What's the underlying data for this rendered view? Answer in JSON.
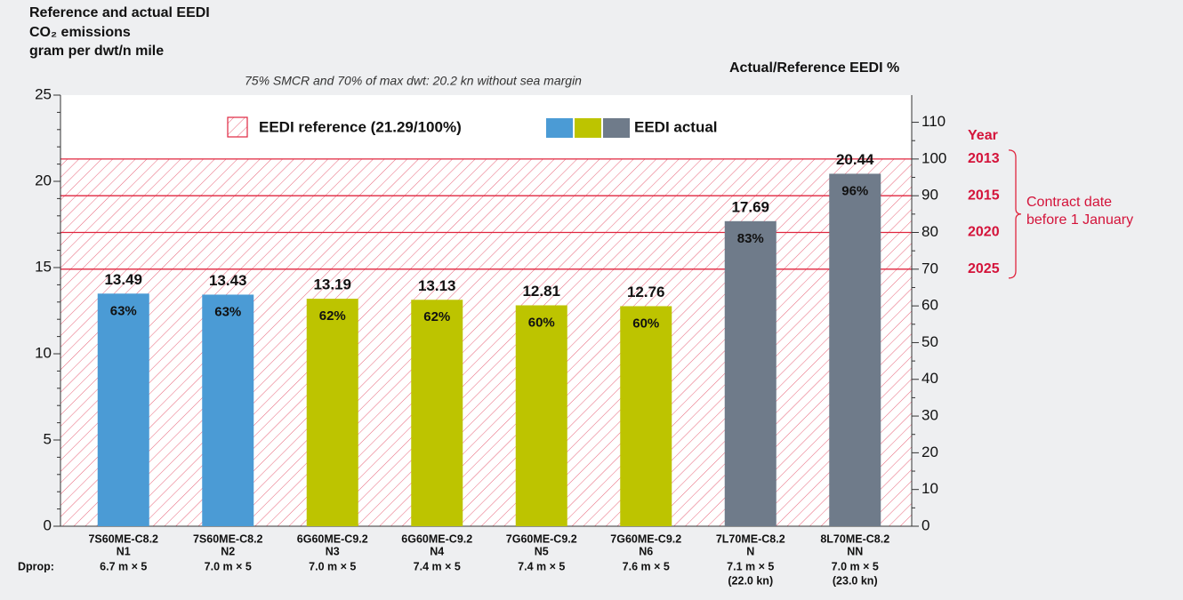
{
  "chart_data": {
    "type": "bar",
    "title": [
      "Reference and actual EEDI",
      "CO₂ emissions",
      "gram per dwt/n mile"
    ],
    "subtitle": "75% SMCR and 70% of max dwt: 20.2 kn without sea margin",
    "y2_label": "Actual/Reference EEDI %",
    "row_label": "Dprop:",
    "categories": [
      [
        "7S60ME-C8.2",
        "N1",
        "6.7 m × 5"
      ],
      [
        "7S60ME-C8.2",
        "N2",
        "7.0 m × 5"
      ],
      [
        "6G60ME-C9.2",
        "N3",
        "7.0 m × 5"
      ],
      [
        "6G60ME-C9.2",
        "N4",
        "7.4 m × 5"
      ],
      [
        "7G60ME-C9.2",
        "N5",
        "7.4 m × 5"
      ],
      [
        "7G60ME-C9.2",
        "N6",
        "7.6 m × 5"
      ],
      [
        "7L70ME-C8.2",
        "N",
        "7.1 m × 5",
        "(22.0 kn)"
      ],
      [
        "8L70ME-C8.2",
        "NN",
        "7.0 m × 5",
        "(23.0 kn)"
      ]
    ],
    "values": [
      13.49,
      13.43,
      13.19,
      13.13,
      12.81,
      12.76,
      17.69,
      20.44
    ],
    "percent_labels": [
      "63%",
      "63%",
      "62%",
      "62%",
      "60%",
      "60%",
      "83%",
      "96%"
    ],
    "colors": [
      "#4b9bd5",
      "#4b9bd5",
      "#bdc400",
      "#bdc400",
      "#bdc400",
      "#bdc400",
      "#6f7b8a",
      "#6f7b8a"
    ],
    "ylim": [
      0,
      25
    ],
    "yticks": [
      0,
      5,
      10,
      15,
      20,
      25
    ],
    "y2lim": [
      0,
      117.4
    ],
    "y2ticks": [
      0,
      10,
      20,
      30,
      40,
      50,
      60,
      70,
      80,
      90,
      100,
      110
    ],
    "reference": {
      "value": 21.29,
      "color": "#e0263f"
    },
    "legend": {
      "reference": "EEDI reference (21.29/100%)",
      "actual": "EEDI actual"
    },
    "year_label": "Year",
    "reference_lines": [
      {
        "value": 100,
        "label": "2013"
      },
      {
        "value": 90,
        "label": "2015"
      },
      {
        "value": 80,
        "label": "2020"
      },
      {
        "value": 70,
        "label": "2025"
      }
    ],
    "bracket_note": [
      "Contract date",
      "before 1 January"
    ]
  }
}
